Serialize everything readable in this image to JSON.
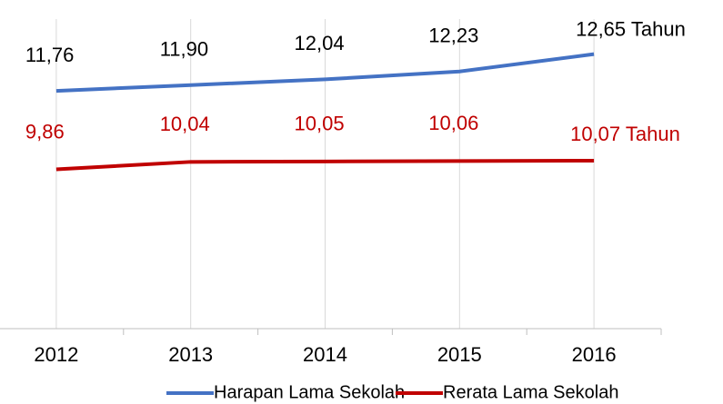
{
  "chart_data": {
    "type": "line",
    "categories": [
      "2012",
      "2013",
      "2014",
      "2015",
      "2016"
    ],
    "series": [
      {
        "name": "Harapan Lama Sekolah",
        "color": "#4472c4",
        "label_color": "#000000",
        "values": [
          11.76,
          11.9,
          12.04,
          12.23,
          12.65
        ],
        "value_labels": [
          "11,76",
          "11,90",
          "12,04",
          "12,23",
          "12,65 Tahun"
        ]
      },
      {
        "name": "Rerata Lama Sekolah",
        "color": "#c00000",
        "label_color": "#c00000",
        "values": [
          9.86,
          10.04,
          10.05,
          10.06,
          10.07
        ],
        "value_labels": [
          "9,86",
          "10,04",
          "10,05",
          "10,06",
          "10,07 Tahun"
        ]
      }
    ],
    "ylim": [
      6,
      13.5
    ],
    "grid": true,
    "legend": "bottom"
  }
}
